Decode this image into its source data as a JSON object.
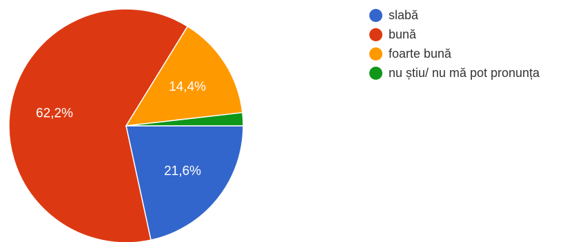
{
  "chart_data": {
    "type": "pie",
    "title": "",
    "slices": [
      {
        "label": "slabă",
        "value": 21.6,
        "value_label": "21,6%",
        "color": "#3366cc"
      },
      {
        "label": "bună",
        "value": 62.2,
        "value_label": "62,2%",
        "color": "#dc3912"
      },
      {
        "label": "foarte bună",
        "value": 14.4,
        "value_label": "14,4%",
        "color": "#ff9900"
      },
      {
        "label": "nu știu/ nu mă pot pronunța",
        "value": 1.8,
        "value_label": "",
        "color": "#109618"
      }
    ],
    "start_angle": "3 o'clock",
    "direction": "clockwise",
    "legend_position": "right"
  }
}
